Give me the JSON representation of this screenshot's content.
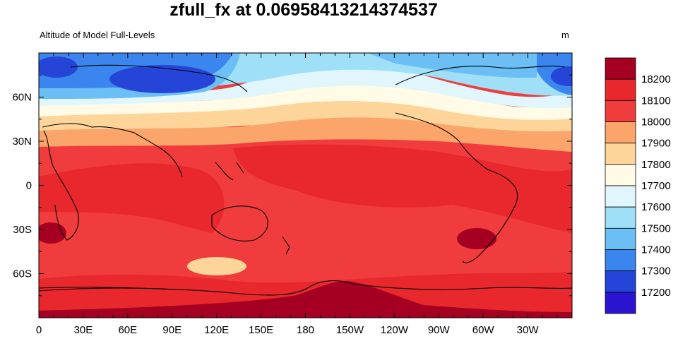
{
  "title": "zfull_fx at 0.06958413214374537",
  "left_subtitle": "Altitude of Model Full-Levels",
  "right_subtitle": "m",
  "chart_data": {
    "type": "filled-contour map",
    "projection": "cylindrical equidistant",
    "lon_range": [
      0,
      360
    ],
    "lat_range": [
      -90,
      90
    ],
    "x_tick_labels": [
      "0",
      "30E",
      "60E",
      "90E",
      "120E",
      "150E",
      "180",
      "150W",
      "120W",
      "90W",
      "60W",
      "30W"
    ],
    "y_tick_labels": [
      "60N",
      "30N",
      "0",
      "30S",
      "60S"
    ],
    "y_tick_values": [
      60,
      30,
      0,
      -30,
      -60
    ],
    "colorbar": {
      "labels": [
        "18200",
        "18100",
        "18000",
        "17900",
        "17800",
        "17700",
        "17600",
        "17500",
        "17400",
        "17300",
        "17200"
      ],
      "colors": [
        "#a50021",
        "#e8282d",
        "#f03c3c",
        "#fba56b",
        "#fdd59a",
        "#fffbe6",
        "#e1f5fc",
        "#9fe0f8",
        "#6cbff5",
        "#3a86ee",
        "#2545d8",
        "#2a14d0"
      ]
    },
    "colors": {
      "ice_cap": "#a50021",
      "hot": "#e8282d",
      "warm": "#f03c3c",
      "orange": "#fba56b",
      "peach": "#fdd59a",
      "cream": "#fffbe6",
      "pale_blue": "#e1f5fc",
      "light_blue": "#9fe0f8",
      "sky": "#6cbff5",
      "blue": "#3a86ee",
      "deep_blue": "#2545d8"
    }
  }
}
